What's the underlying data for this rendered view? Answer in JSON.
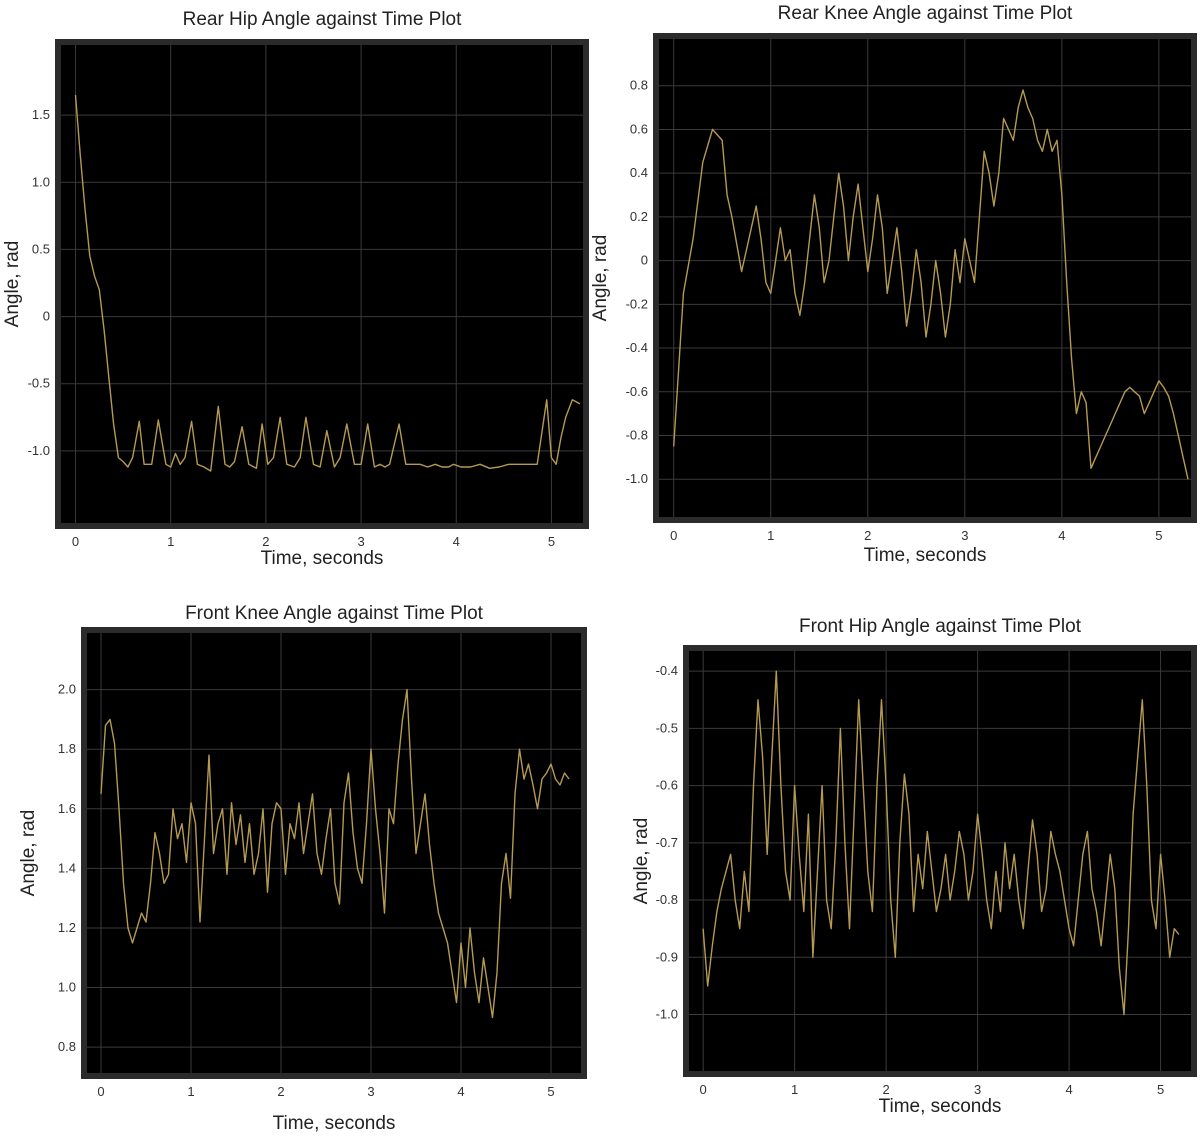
{
  "colors": {
    "background": "#000000",
    "trace": "#b59a52",
    "grid": "#3a3a3a"
  },
  "chart_data": [
    {
      "type": "line",
      "title": "Rear Hip Angle against Time Plot",
      "xlabel": "Time, seconds",
      "ylabel": "Angle, rad",
      "xlim": [
        -0.1,
        5.3
      ],
      "ylim": [
        -1.5,
        2.0
      ],
      "xticks": [
        "0",
        "1",
        "2",
        "3",
        "4",
        "5"
      ],
      "yticks": [
        "1.5",
        "1.0",
        "0.5",
        "0",
        "-0.5",
        "-1.0"
      ],
      "grid": true,
      "series": [
        {
          "x": [
            0,
            0.05,
            0.1,
            0.15,
            0.2,
            0.25,
            0.3,
            0.35,
            0.4,
            0.45,
            0.5,
            0.55,
            0.6,
            0.67,
            0.72,
            0.8,
            0.87,
            0.95,
            1.0,
            1.05,
            1.1,
            1.15,
            1.22,
            1.28,
            1.35,
            1.42,
            1.5,
            1.57,
            1.62,
            1.67,
            1.75,
            1.82,
            1.9,
            1.96,
            2.02,
            2.08,
            2.15,
            2.22,
            2.3,
            2.36,
            2.42,
            2.5,
            2.57,
            2.64,
            2.72,
            2.78,
            2.85,
            2.93,
            3.0,
            3.07,
            3.14,
            3.2,
            3.25,
            3.3,
            3.4,
            3.47,
            3.55,
            3.62,
            3.7,
            3.78,
            3.85,
            3.92,
            3.97,
            4.05,
            4.15,
            4.25,
            4.35,
            4.45,
            4.55,
            4.65,
            4.75,
            4.85,
            4.95,
            5.0,
            5.05,
            5.1,
            5.15,
            5.22,
            5.3
          ],
          "y": [
            1.65,
            1.2,
            0.8,
            0.45,
            0.3,
            0.2,
            -0.1,
            -0.45,
            -0.8,
            -1.05,
            -1.08,
            -1.12,
            -1.05,
            -0.78,
            -1.1,
            -1.1,
            -0.77,
            -1.1,
            -1.12,
            -1.02,
            -1.1,
            -1.05,
            -0.78,
            -1.1,
            -1.12,
            -1.15,
            -0.67,
            -1.1,
            -1.12,
            -1.08,
            -0.82,
            -1.1,
            -1.13,
            -0.8,
            -1.1,
            -1.05,
            -0.75,
            -1.1,
            -1.12,
            -1.05,
            -0.75,
            -1.1,
            -1.12,
            -0.85,
            -1.12,
            -1.05,
            -0.8,
            -1.1,
            -1.1,
            -0.8,
            -1.12,
            -1.1,
            -1.12,
            -1.1,
            -0.8,
            -1.1,
            -1.1,
            -1.1,
            -1.12,
            -1.1,
            -1.12,
            -1.12,
            -1.1,
            -1.12,
            -1.12,
            -1.1,
            -1.13,
            -1.12,
            -1.1,
            -1.1,
            -1.1,
            -1.1,
            -0.62,
            -1.05,
            -1.1,
            -0.9,
            -0.75,
            -0.62,
            -0.65
          ]
        }
      ]
    },
    {
      "type": "line",
      "title": "Rear Knee Angle against Time Plot",
      "xlabel": "Time, seconds",
      "ylabel": "Angle, rad",
      "xlim": [
        -0.1,
        5.3
      ],
      "ylim": [
        -1.15,
        1.0
      ],
      "xticks": [
        "0",
        "1",
        "2",
        "3",
        "4",
        "5"
      ],
      "yticks": [
        "0.8",
        "0.6",
        "0.4",
        "0.2",
        "0",
        "-0.2",
        "-0.4",
        "-0.6",
        "-0.8",
        "-1.0"
      ],
      "grid": true,
      "series": [
        {
          "x": [
            0,
            0.05,
            0.1,
            0.2,
            0.3,
            0.4,
            0.5,
            0.55,
            0.6,
            0.7,
            0.75,
            0.85,
            0.9,
            0.95,
            1.0,
            1.05,
            1.1,
            1.15,
            1.2,
            1.25,
            1.3,
            1.35,
            1.4,
            1.45,
            1.5,
            1.55,
            1.6,
            1.65,
            1.7,
            1.75,
            1.8,
            1.85,
            1.9,
            1.95,
            2.0,
            2.05,
            2.1,
            2.15,
            2.2,
            2.3,
            2.35,
            2.4,
            2.45,
            2.5,
            2.55,
            2.6,
            2.65,
            2.7,
            2.75,
            2.8,
            2.85,
            2.9,
            2.95,
            3.0,
            3.05,
            3.1,
            3.15,
            3.2,
            3.25,
            3.3,
            3.35,
            3.4,
            3.45,
            3.5,
            3.55,
            3.6,
            3.65,
            3.7,
            3.75,
            3.8,
            3.85,
            3.9,
            3.95,
            4.0,
            4.05,
            4.1,
            4.15,
            4.2,
            4.25,
            4.3,
            4.35,
            4.4,
            4.45,
            4.5,
            4.55,
            4.6,
            4.65,
            4.7,
            4.75,
            4.8,
            4.85,
            4.9,
            4.95,
            5.0,
            5.05,
            5.1,
            5.15,
            5.2,
            5.25,
            5.3
          ],
          "y": [
            -0.85,
            -0.5,
            -0.15,
            0.1,
            0.45,
            0.6,
            0.55,
            0.3,
            0.2,
            -0.05,
            0.05,
            0.25,
            0.1,
            -0.1,
            -0.15,
            0.0,
            0.15,
            0.0,
            0.05,
            -0.15,
            -0.25,
            -0.1,
            0.1,
            0.3,
            0.15,
            -0.1,
            0.0,
            0.2,
            0.4,
            0.25,
            0.0,
            0.2,
            0.35,
            0.15,
            -0.05,
            0.1,
            0.3,
            0.15,
            -0.15,
            0.15,
            -0.05,
            -0.3,
            -0.15,
            0.05,
            -0.1,
            -0.35,
            -0.2,
            0.0,
            -0.15,
            -0.35,
            -0.2,
            0.05,
            -0.1,
            0.1,
            0.0,
            -0.1,
            0.2,
            0.5,
            0.4,
            0.25,
            0.4,
            0.65,
            0.6,
            0.55,
            0.7,
            0.78,
            0.7,
            0.65,
            0.55,
            0.5,
            0.6,
            0.5,
            0.55,
            0.3,
            -0.1,
            -0.45,
            -0.7,
            -0.6,
            -0.65,
            -0.95,
            -0.9,
            -0.85,
            -0.8,
            -0.75,
            -0.7,
            -0.65,
            -0.6,
            -0.58,
            -0.6,
            -0.62,
            -0.7,
            -0.65,
            -0.6,
            -0.55,
            -0.58,
            -0.62,
            -0.7,
            -0.8,
            -0.9,
            -1.0
          ]
        }
      ]
    },
    {
      "type": "line",
      "title": "Front Knee Angle against Time Plot",
      "xlabel": "Time, seconds",
      "ylabel": "Angle, rad",
      "xlim": [
        -0.1,
        5.3
      ],
      "ylim": [
        0.73,
        2.18
      ],
      "xticks": [
        "0",
        "1",
        "2",
        "3",
        "4",
        "5"
      ],
      "yticks": [
        "2.0",
        "1.8",
        "1.6",
        "1.4",
        "1.2",
        "1.0",
        "0.8"
      ],
      "grid": true,
      "series": [
        {
          "x": [
            0,
            0.05,
            0.1,
            0.15,
            0.2,
            0.25,
            0.3,
            0.35,
            0.4,
            0.45,
            0.5,
            0.55,
            0.6,
            0.65,
            0.7,
            0.75,
            0.8,
            0.85,
            0.9,
            0.95,
            1.0,
            1.05,
            1.1,
            1.15,
            1.2,
            1.25,
            1.3,
            1.35,
            1.4,
            1.45,
            1.5,
            1.55,
            1.6,
            1.65,
            1.7,
            1.75,
            1.8,
            1.85,
            1.9,
            1.95,
            2.0,
            2.05,
            2.1,
            2.15,
            2.2,
            2.25,
            2.3,
            2.35,
            2.4,
            2.45,
            2.5,
            2.55,
            2.6,
            2.65,
            2.7,
            2.75,
            2.8,
            2.85,
            2.9,
            2.95,
            3.0,
            3.05,
            3.1,
            3.15,
            3.2,
            3.25,
            3.3,
            3.35,
            3.4,
            3.45,
            3.5,
            3.55,
            3.6,
            3.65,
            3.7,
            3.75,
            3.8,
            3.85,
            3.9,
            3.95,
            4.0,
            4.05,
            4.1,
            4.15,
            4.2,
            4.25,
            4.3,
            4.35,
            4.4,
            4.45,
            4.5,
            4.55,
            4.6,
            4.65,
            4.7,
            4.75,
            4.8,
            4.85,
            4.9,
            4.95,
            5.0,
            5.05,
            5.1,
            5.15,
            5.2
          ],
          "y": [
            1.65,
            1.88,
            1.9,
            1.82,
            1.6,
            1.35,
            1.2,
            1.15,
            1.2,
            1.25,
            1.22,
            1.35,
            1.52,
            1.45,
            1.35,
            1.38,
            1.6,
            1.5,
            1.55,
            1.42,
            1.62,
            1.55,
            1.22,
            1.5,
            1.78,
            1.45,
            1.55,
            1.6,
            1.38,
            1.62,
            1.48,
            1.58,
            1.42,
            1.55,
            1.38,
            1.45,
            1.6,
            1.32,
            1.55,
            1.62,
            1.6,
            1.38,
            1.55,
            1.5,
            1.62,
            1.45,
            1.55,
            1.65,
            1.45,
            1.38,
            1.5,
            1.6,
            1.35,
            1.28,
            1.62,
            1.72,
            1.52,
            1.4,
            1.35,
            1.55,
            1.8,
            1.6,
            1.45,
            1.25,
            1.6,
            1.55,
            1.75,
            1.9,
            2.0,
            1.7,
            1.45,
            1.55,
            1.65,
            1.48,
            1.35,
            1.25,
            1.2,
            1.15,
            1.05,
            0.95,
            1.15,
            1.0,
            1.2,
            1.05,
            0.95,
            1.1,
            1.0,
            0.9,
            1.05,
            1.35,
            1.45,
            1.3,
            1.65,
            1.8,
            1.7,
            1.75,
            1.68,
            1.6,
            1.7,
            1.72,
            1.75,
            1.7,
            1.68,
            1.72,
            1.7
          ]
        }
      ]
    },
    {
      "type": "line",
      "title": "Front Hip Angle against Time Plot",
      "xlabel": "Time, seconds",
      "ylabel": "Angle, rad",
      "xlim": [
        -0.1,
        5.3
      ],
      "ylim": [
        -1.09,
        -0.37
      ],
      "xticks": [
        "0",
        "1",
        "2",
        "3",
        "4",
        "5"
      ],
      "yticks": [
        "-0.4",
        "-0.5",
        "-0.6",
        "-0.7",
        "-0.8",
        "-0.9",
        "-1.0"
      ],
      "grid": true,
      "series": [
        {
          "x": [
            0,
            0.05,
            0.1,
            0.15,
            0.2,
            0.25,
            0.3,
            0.35,
            0.4,
            0.45,
            0.5,
            0.55,
            0.6,
            0.65,
            0.7,
            0.75,
            0.8,
            0.85,
            0.9,
            0.95,
            1.0,
            1.05,
            1.1,
            1.15,
            1.2,
            1.25,
            1.3,
            1.35,
            1.4,
            1.45,
            1.5,
            1.55,
            1.6,
            1.65,
            1.7,
            1.75,
            1.8,
            1.85,
            1.9,
            1.95,
            2.0,
            2.05,
            2.1,
            2.15,
            2.2,
            2.25,
            2.3,
            2.35,
            2.4,
            2.45,
            2.5,
            2.55,
            2.6,
            2.65,
            2.7,
            2.75,
            2.8,
            2.85,
            2.9,
            2.95,
            3.0,
            3.05,
            3.1,
            3.15,
            3.2,
            3.25,
            3.3,
            3.35,
            3.4,
            3.45,
            3.5,
            3.55,
            3.6,
            3.65,
            3.7,
            3.75,
            3.8,
            3.85,
            3.9,
            3.95,
            4.0,
            4.05,
            4.1,
            4.15,
            4.2,
            4.25,
            4.3,
            4.35,
            4.4,
            4.45,
            4.5,
            4.55,
            4.6,
            4.65,
            4.7,
            4.75,
            4.8,
            4.85,
            4.9,
            4.95,
            5.0,
            5.05,
            5.1,
            5.15,
            5.2
          ],
          "y": [
            -0.85,
            -0.95,
            -0.88,
            -0.82,
            -0.78,
            -0.75,
            -0.72,
            -0.8,
            -0.85,
            -0.75,
            -0.82,
            -0.6,
            -0.45,
            -0.55,
            -0.72,
            -0.55,
            -0.4,
            -0.6,
            -0.75,
            -0.8,
            -0.6,
            -0.72,
            -0.82,
            -0.65,
            -0.9,
            -0.75,
            -0.6,
            -0.8,
            -0.85,
            -0.7,
            -0.5,
            -0.7,
            -0.85,
            -0.65,
            -0.45,
            -0.6,
            -0.75,
            -0.82,
            -0.6,
            -0.45,
            -0.6,
            -0.8,
            -0.9,
            -0.7,
            -0.58,
            -0.65,
            -0.82,
            -0.72,
            -0.78,
            -0.68,
            -0.75,
            -0.82,
            -0.78,
            -0.72,
            -0.8,
            -0.75,
            -0.68,
            -0.72,
            -0.8,
            -0.75,
            -0.65,
            -0.72,
            -0.8,
            -0.85,
            -0.75,
            -0.82,
            -0.7,
            -0.78,
            -0.72,
            -0.8,
            -0.85,
            -0.75,
            -0.66,
            -0.72,
            -0.82,
            -0.78,
            -0.68,
            -0.72,
            -0.75,
            -0.8,
            -0.85,
            -0.88,
            -0.8,
            -0.72,
            -0.68,
            -0.78,
            -0.82,
            -0.88,
            -0.8,
            -0.72,
            -0.78,
            -0.92,
            -1.0,
            -0.85,
            -0.65,
            -0.55,
            -0.45,
            -0.6,
            -0.8,
            -0.85,
            -0.72,
            -0.8,
            -0.9,
            -0.85,
            -0.86
          ]
        }
      ]
    }
  ]
}
